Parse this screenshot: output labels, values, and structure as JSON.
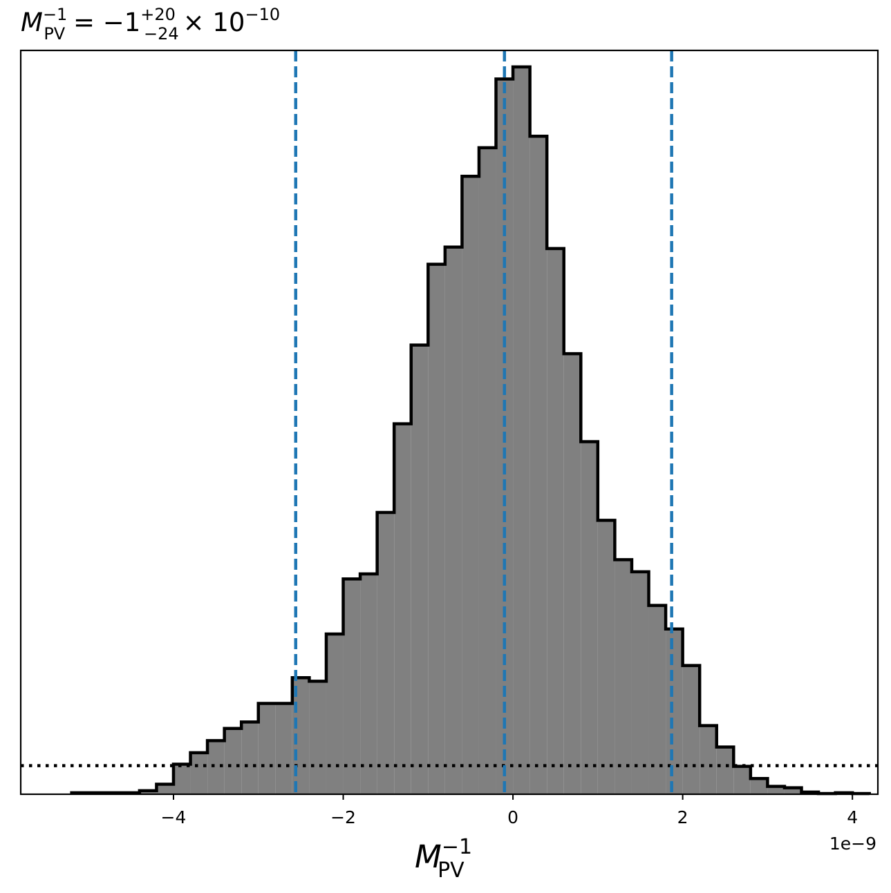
{
  "chart_data": {
    "type": "histogram",
    "title": {
      "symbol": "M",
      "superscript": "−1",
      "subscript": "PV",
      "equals": " = −1",
      "err_plus": "+20",
      "err_minus": "−24",
      "tail": "× 10",
      "exponent": "−10"
    },
    "xlabel": {
      "symbol": "M",
      "superscript": "−1",
      "subscript": "PV"
    },
    "ylabel": "",
    "offset_text": "1e−9",
    "x_unit_scale": 1e-09,
    "xlim": [
      -5.8,
      4.3
    ],
    "ylim": [
      0,
      1.04
    ],
    "y_axis_visible": false,
    "grid": false,
    "xticks": [
      -4,
      -2,
      0,
      2,
      4
    ],
    "xtick_labels": [
      "−4",
      "−2",
      "0",
      "2",
      "4"
    ],
    "bin_edges": [
      -5.2,
      -5.0,
      -4.8,
      -4.6,
      -4.4,
      -4.2,
      -4.0,
      -3.8,
      -3.6,
      -3.4,
      -3.2,
      -3.0,
      -2.8,
      -2.6,
      -2.4,
      -2.2,
      -2.0,
      -1.8,
      -1.6,
      -1.4,
      -1.2,
      -1.0,
      -0.8,
      -0.6,
      -0.4,
      -0.2,
      0.0,
      0.2,
      0.4,
      0.6,
      0.8,
      1.0,
      1.2,
      1.4,
      1.6,
      1.8,
      2.0,
      2.2,
      2.4,
      2.6,
      2.8,
      3.0,
      3.2,
      3.4,
      3.6,
      3.8,
      4.0,
      4.2
    ],
    "counts": [
      0.002,
      0.002,
      0.002,
      0.002,
      0.005,
      0.014,
      0.042,
      0.058,
      0.075,
      0.092,
      0.101,
      0.127,
      0.127,
      0.163,
      0.158,
      0.224,
      0.301,
      0.308,
      0.394,
      0.518,
      0.628,
      0.741,
      0.765,
      0.864,
      0.904,
      1.0,
      1.017,
      0.92,
      0.763,
      0.616,
      0.493,
      0.383,
      0.328,
      0.311,
      0.264,
      0.231,
      0.18,
      0.096,
      0.066,
      0.039,
      0.022,
      0.011,
      0.009,
      0.003,
      0.001,
      0.002,
      0.001
    ],
    "fill_color": "#808080",
    "edge_color": "#000000",
    "quantile_lines": [
      -2.56,
      -0.1,
      1.87
    ],
    "quantile_color": "#1f77b4",
    "quantile_linestyle": "dashed",
    "reference_level": 0.04,
    "reference_color": "#000000",
    "reference_linestyle": "dotted"
  }
}
